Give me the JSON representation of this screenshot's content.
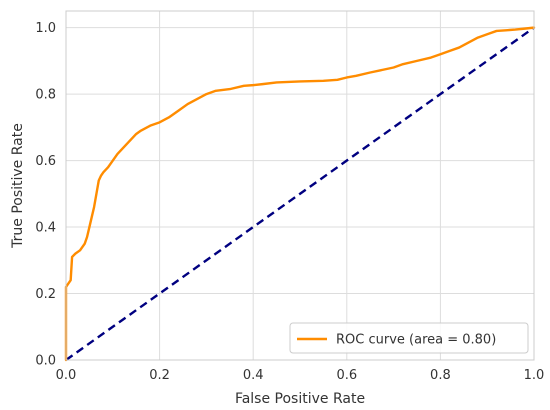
{
  "chart_data": {
    "type": "line",
    "title": "",
    "xlabel": "False Positive Rate",
    "ylabel": "True Positive Rate",
    "xlim": [
      0.0,
      1.0
    ],
    "ylim": [
      0.0,
      1.05
    ],
    "xticks": [
      0.0,
      0.2,
      0.4,
      0.6,
      0.8,
      1.0
    ],
    "yticks": [
      0.0,
      0.2,
      0.4,
      0.6,
      0.8,
      1.0
    ],
    "xtick_labels": [
      "0.0",
      "0.2",
      "0.4",
      "0.6",
      "0.8",
      "1.0"
    ],
    "ytick_labels": [
      "0.0",
      "0.2",
      "0.4",
      "0.6",
      "0.8",
      "1.0"
    ],
    "grid": true,
    "legend_position": "lower-right",
    "series": [
      {
        "name": "ROC curve (area = 0.80)",
        "color": "#ff8c00",
        "style": "solid",
        "x": [
          0.0,
          0.0,
          0.005,
          0.01,
          0.013,
          0.02,
          0.03,
          0.04,
          0.045,
          0.05,
          0.055,
          0.06,
          0.065,
          0.07,
          0.075,
          0.08,
          0.09,
          0.1,
          0.11,
          0.12,
          0.13,
          0.14,
          0.15,
          0.16,
          0.18,
          0.2,
          0.22,
          0.24,
          0.26,
          0.28,
          0.3,
          0.32,
          0.35,
          0.38,
          0.4,
          0.42,
          0.45,
          0.5,
          0.55,
          0.58,
          0.6,
          0.62,
          0.65,
          0.7,
          0.72,
          0.75,
          0.78,
          0.8,
          0.82,
          0.84,
          0.86,
          0.88,
          0.9,
          0.92,
          0.94,
          0.96,
          0.98,
          1.0
        ],
        "y": [
          0.0,
          0.22,
          0.23,
          0.24,
          0.31,
          0.32,
          0.33,
          0.35,
          0.37,
          0.4,
          0.43,
          0.46,
          0.5,
          0.54,
          0.555,
          0.565,
          0.58,
          0.6,
          0.62,
          0.635,
          0.65,
          0.665,
          0.68,
          0.69,
          0.705,
          0.715,
          0.73,
          0.75,
          0.77,
          0.785,
          0.8,
          0.81,
          0.815,
          0.825,
          0.827,
          0.83,
          0.835,
          0.838,
          0.84,
          0.843,
          0.85,
          0.855,
          0.865,
          0.88,
          0.89,
          0.9,
          0.91,
          0.92,
          0.93,
          0.94,
          0.955,
          0.97,
          0.98,
          0.99,
          0.992,
          0.994,
          0.997,
          1.0
        ]
      },
      {
        "name": "",
        "color": "#000080",
        "style": "dashed",
        "x": [
          0.0,
          1.0
        ],
        "y": [
          0.0,
          1.0
        ]
      }
    ]
  }
}
